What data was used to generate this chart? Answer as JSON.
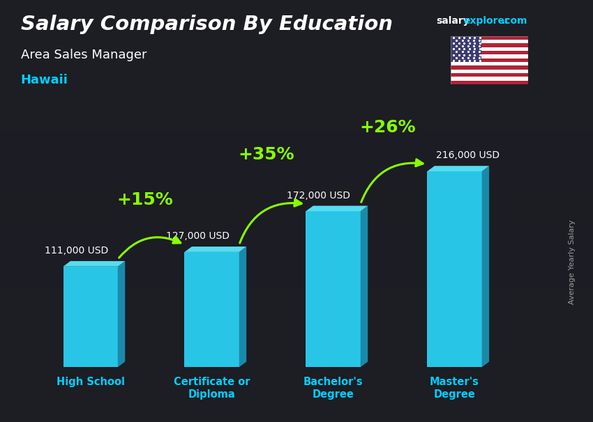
{
  "title_line1": "Salary Comparison By Education",
  "subtitle": "Area Sales Manager",
  "location": "Hawaii",
  "categories": [
    "High School",
    "Certificate or\nDiploma",
    "Bachelor's\nDegree",
    "Master's\nDegree"
  ],
  "values": [
    111000,
    127000,
    172000,
    216000
  ],
  "value_labels": [
    "111,000 USD",
    "127,000 USD",
    "172,000 USD",
    "216,000 USD"
  ],
  "pct_labels": [
    "+15%",
    "+35%",
    "+26%"
  ],
  "bar_face_color": "#29c5e6",
  "bar_side_color": "#1a8aaa",
  "bar_top_color": "#55ddf0",
  "background_color": "#2a2a2e",
  "title_color": "#ffffff",
  "subtitle_color": "#ffffff",
  "location_color": "#00cfff",
  "value_label_color": "#ffffff",
  "pct_color": "#88ff00",
  "arrow_color": "#88ff00",
  "xtick_color": "#00cfff",
  "ylabel_text": "Average Yearly Salary",
  "ylabel_color": "#aaaaaa",
  "ylim_max": 270000,
  "bar_width": 0.45
}
